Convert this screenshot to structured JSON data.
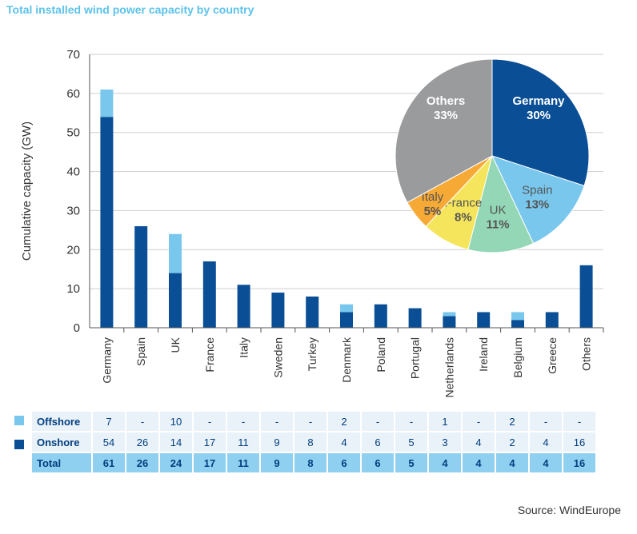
{
  "title": "Total installed wind power capacity by country",
  "source": "Source: WindEurope",
  "colors": {
    "onshore": "#0a4f96",
    "offshore": "#79c7ed"
  },
  "chart_data": [
    {
      "type": "bar",
      "stacked": true,
      "ylabel": "Cumulative capacity (GW)",
      "xlabel": "",
      "ylim": [
        0,
        70
      ],
      "yticks": [
        0,
        10,
        20,
        30,
        40,
        50,
        60,
        70
      ],
      "grid": true,
      "categories": [
        "Germany",
        "Spain",
        "UK",
        "France",
        "Italy",
        "Sweden",
        "Turkey",
        "Denmark",
        "Poland",
        "Portugal",
        "Netherlands",
        "Ireland",
        "Belgium",
        "Greece",
        "Others"
      ],
      "series": [
        {
          "name": "Onshore",
          "color": "#0a4f96",
          "values": [
            54,
            26,
            14,
            17,
            11,
            9,
            8,
            4,
            6,
            5,
            3,
            4,
            2,
            4,
            16
          ]
        },
        {
          "name": "Offshore",
          "color": "#79c7ed",
          "values": [
            7,
            0,
            10,
            0,
            0,
            0,
            0,
            2,
            0,
            0,
            1,
            0,
            2,
            0,
            0
          ]
        }
      ]
    },
    {
      "type": "pie",
      "slices": [
        {
          "label": "Germany",
          "value": 30,
          "text": "30%",
          "color": "#0a4f96",
          "label_color": "#ffffff"
        },
        {
          "label": "Spain",
          "value": 13,
          "text": "13%",
          "color": "#79c7ed",
          "label_color": "#555555"
        },
        {
          "label": "UK",
          "value": 11,
          "text": "11%",
          "color": "#93d7b6",
          "label_color": "#555555"
        },
        {
          "label": "France",
          "value": 8,
          "text": "8%",
          "color": "#f5e55c",
          "label_color": "#555555"
        },
        {
          "label": "Italy",
          "value": 5,
          "text": "5%",
          "color": "#f7a935",
          "label_color": "#555555"
        },
        {
          "label": "Others",
          "value": 33,
          "text": "33%",
          "color": "#9a9b9d",
          "label_color": "#ffffff"
        }
      ]
    },
    {
      "type": "table",
      "rows": [
        {
          "label": "Offshore",
          "color": "#79c7ed",
          "cells": [
            "7",
            "-",
            "10",
            "-",
            "-",
            "-",
            "-",
            "2",
            "-",
            "-",
            "1",
            "-",
            "2",
            "-",
            "-"
          ]
        },
        {
          "label": "Onshore",
          "color": "#0a4f96",
          "cells": [
            "54",
            "26",
            "14",
            "17",
            "11",
            "9",
            "8",
            "4",
            "6",
            "5",
            "3",
            "4",
            "2",
            "4",
            "16"
          ]
        },
        {
          "label": "Total",
          "color": "",
          "cells": [
            "61",
            "26",
            "24",
            "17",
            "11",
            "9",
            "8",
            "6",
            "6",
            "5",
            "4",
            "4",
            "4",
            "4",
            "16"
          ]
        }
      ]
    }
  ]
}
